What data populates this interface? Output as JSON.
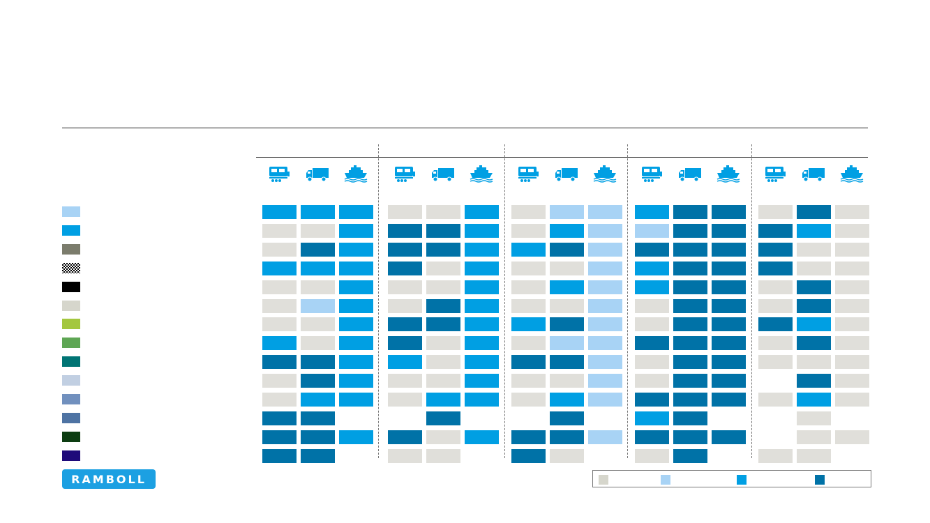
{
  "brand": {
    "logo_text": "RAMBOLL",
    "logo_color": "#1ca0e2"
  },
  "colors": {
    "grey": "#e0dfda",
    "light": "#a8d3f5",
    "mid": "#009fe3",
    "dark": "#0072a7"
  },
  "chart_data": {
    "type": "heatmap",
    "title": "",
    "groups": [
      "",
      "",
      "",
      "",
      ""
    ],
    "modes": [
      "train-icon",
      "truck-icon",
      "ship-icon"
    ],
    "rows": [
      {
        "label": "",
        "swatch": "#a8d3f5"
      },
      {
        "label": "",
        "swatch": "#009fe3"
      },
      {
        "label": "",
        "swatch": "#7b7c6c"
      },
      {
        "label": "",
        "swatch": "checker"
      },
      {
        "label": "",
        "swatch": "#000000"
      },
      {
        "label": "",
        "swatch": "#d6d6cc"
      },
      {
        "label": "",
        "swatch": "#a4c73f"
      },
      {
        "label": "",
        "swatch": "#5ea654"
      },
      {
        "label": "",
        "swatch": "#007474"
      },
      {
        "label": "",
        "swatch": "#c1cfe2"
      },
      {
        "label": "",
        "swatch": "#7190be"
      },
      {
        "label": "",
        "swatch": "#4e73a3"
      },
      {
        "label": "",
        "swatch": "#0d3d12"
      },
      {
        "label": "",
        "swatch": "#1e0a7a"
      }
    ],
    "values": [
      [
        2,
        2,
        2,
        0,
        0,
        2,
        0,
        1,
        1,
        2,
        3,
        3,
        0,
        3,
        0
      ],
      [
        0,
        0,
        2,
        3,
        3,
        2,
        0,
        2,
        1,
        1,
        3,
        3,
        3,
        2,
        0
      ],
      [
        0,
        3,
        2,
        3,
        3,
        2,
        2,
        3,
        1,
        3,
        3,
        3,
        3,
        0,
        0
      ],
      [
        2,
        2,
        2,
        3,
        0,
        2,
        0,
        0,
        1,
        2,
        3,
        3,
        3,
        0,
        0
      ],
      [
        0,
        0,
        2,
        0,
        0,
        2,
        0,
        2,
        1,
        2,
        3,
        3,
        0,
        3,
        0
      ],
      [
        0,
        1,
        2,
        0,
        3,
        2,
        0,
        0,
        1,
        0,
        3,
        3,
        0,
        3,
        0
      ],
      [
        0,
        0,
        2,
        3,
        3,
        2,
        2,
        3,
        1,
        0,
        3,
        3,
        3,
        2,
        0
      ],
      [
        2,
        0,
        2,
        3,
        0,
        2,
        0,
        1,
        1,
        3,
        3,
        3,
        0,
        3,
        0
      ],
      [
        3,
        3,
        2,
        2,
        0,
        2,
        3,
        3,
        1,
        0,
        3,
        3,
        0,
        0,
        0
      ],
      [
        0,
        3,
        2,
        0,
        0,
        2,
        0,
        0,
        1,
        0,
        3,
        3,
        -1,
        3,
        0
      ],
      [
        0,
        2,
        2,
        0,
        2,
        2,
        0,
        2,
        1,
        3,
        3,
        3,
        0,
        2,
        0
      ],
      [
        3,
        3,
        -1,
        -1,
        3,
        -1,
        -1,
        3,
        -1,
        2,
        3,
        -1,
        -1,
        0,
        -1
      ],
      [
        3,
        3,
        2,
        3,
        0,
        2,
        3,
        3,
        1,
        3,
        3,
        3,
        -1,
        0,
        0
      ],
      [
        3,
        3,
        -1,
        0,
        0,
        -1,
        3,
        0,
        -1,
        0,
        3,
        -1,
        0,
        0,
        -1
      ]
    ],
    "legend": [
      {
        "label": "",
        "level": 0
      },
      {
        "label": "",
        "level": 1
      },
      {
        "label": "",
        "level": 2
      },
      {
        "label": "",
        "level": 3
      }
    ],
    "legend_position": "bottom-right"
  }
}
